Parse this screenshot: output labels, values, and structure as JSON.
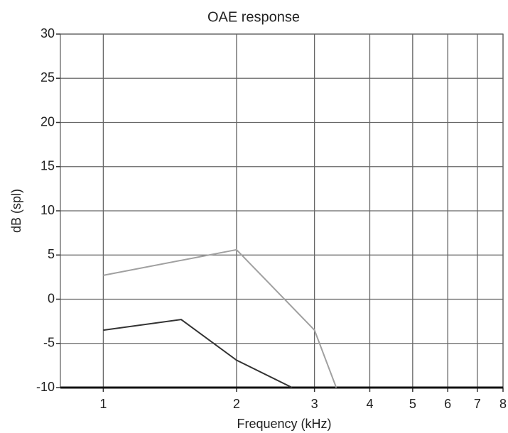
{
  "chart_data": {
    "type": "line",
    "title": "OAE response",
    "xlabel": "Frequency (kHz)",
    "ylabel": "dB (spl)",
    "xscale": "log",
    "xlim": [
      0.8,
      8
    ],
    "ylim": [
      -10,
      30
    ],
    "xticks": [
      1,
      2,
      3,
      4,
      5,
      6,
      7,
      8
    ],
    "yticks": [
      -10,
      -5,
      0,
      5,
      10,
      15,
      20,
      25,
      30
    ],
    "grid": true,
    "series": [
      {
        "color": "#a0a0a0",
        "x": [
          1,
          2,
          3,
          3.36
        ],
        "values": [
          2.7,
          5.6,
          -3.5,
          -10
        ]
      },
      {
        "color": "#333333",
        "x": [
          1,
          1.5,
          2,
          2.67
        ],
        "values": [
          -3.5,
          -2.3,
          -6.9,
          -10
        ]
      }
    ]
  }
}
